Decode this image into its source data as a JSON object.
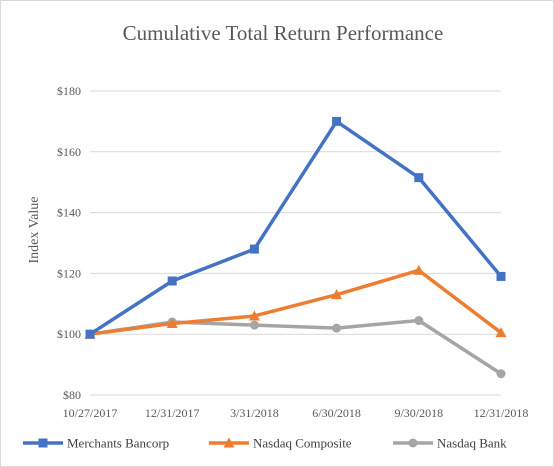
{
  "chart_data": {
    "type": "line",
    "title": "Cumulative Total Return Performance",
    "xlabel": "",
    "ylabel": "Index Value",
    "categories": [
      "10/27/2017",
      "12/31/2017",
      "3/31/2018",
      "6/30/2018",
      "9/30/2018",
      "12/31/2018"
    ],
    "ylim": [
      80,
      180
    ],
    "yticks": [
      80,
      100,
      120,
      140,
      160,
      180
    ],
    "ytick_labels": [
      "$80",
      "$100",
      "$120",
      "$140",
      "$160",
      "$180"
    ],
    "grid": true,
    "legend_position": "bottom",
    "series": [
      {
        "name": "Merchants Bancorp",
        "color": "#4472c4",
        "marker": "square",
        "values": [
          100,
          117.5,
          128,
          170,
          151.5,
          119
        ]
      },
      {
        "name": "Nasdaq Composite",
        "color": "#ed7d31",
        "marker": "triangle",
        "values": [
          100,
          103.5,
          106,
          113,
          121,
          100.5
        ]
      },
      {
        "name": "Nasdaq Bank",
        "color": "#a5a5a5",
        "marker": "circle",
        "values": [
          100,
          104,
          103,
          102,
          104.5,
          87
        ]
      }
    ]
  }
}
